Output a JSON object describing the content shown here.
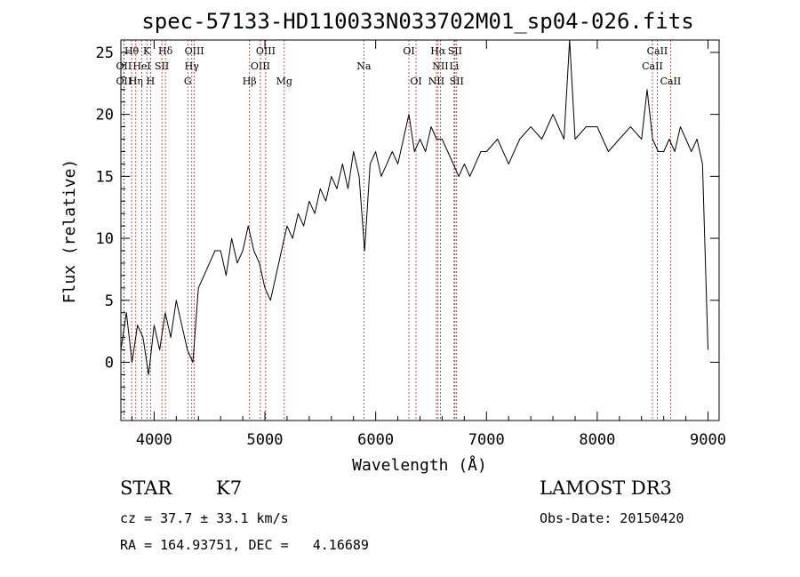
{
  "chart_data": {
    "type": "line",
    "title": "spec-57133-HD110033N033702M01_sp04-026.fits",
    "xlabel": "Wavelength (Å)",
    "ylabel": "Flux (relative)",
    "xlim": [
      3700,
      9100
    ],
    "ylim": [
      -4.7,
      26
    ],
    "x_ticks": [
      4000,
      5000,
      6000,
      7000,
      8000,
      9000
    ],
    "y_ticks": [
      0,
      5,
      10,
      15,
      20,
      25
    ],
    "series": [
      {
        "name": "flux",
        "x": [
          3700,
          3750,
          3800,
          3850,
          3900,
          3950,
          4000,
          4050,
          4100,
          4150,
          4200,
          4250,
          4300,
          4350,
          4400,
          4450,
          4500,
          4550,
          4600,
          4650,
          4700,
          4750,
          4800,
          4850,
          4900,
          4950,
          5000,
          5050,
          5100,
          5150,
          5200,
          5250,
          5300,
          5350,
          5400,
          5450,
          5500,
          5550,
          5600,
          5650,
          5700,
          5750,
          5800,
          5850,
          5900,
          5950,
          6000,
          6050,
          6100,
          6150,
          6200,
          6250,
          6300,
          6350,
          6400,
          6450,
          6500,
          6550,
          6600,
          6650,
          6700,
          6750,
          6800,
          6850,
          6900,
          6950,
          7000,
          7100,
          7200,
          7300,
          7400,
          7500,
          7600,
          7700,
          7750,
          7800,
          7900,
          8000,
          8100,
          8200,
          8300,
          8400,
          8450,
          8500,
          8550,
          8600,
          8650,
          8700,
          8750,
          8800,
          8850,
          8900,
          8950,
          9000
        ],
        "y": [
          1,
          4,
          0,
          3,
          2,
          -1,
          3,
          1,
          4,
          2,
          5,
          3,
          1,
          0,
          6,
          7,
          8,
          9,
          9,
          7,
          10,
          8,
          9,
          11,
          9,
          8,
          6,
          5,
          7,
          9,
          11,
          10,
          12,
          11,
          13,
          12,
          14,
          13,
          15,
          14,
          16,
          14,
          17,
          15,
          9,
          16,
          17,
          15,
          16,
          17,
          16,
          18,
          20,
          17,
          18,
          17,
          19,
          18,
          18,
          17,
          16,
          15,
          16,
          15,
          16,
          17,
          17,
          18,
          16,
          18,
          19,
          18,
          20,
          18,
          26,
          18,
          19,
          19,
          17,
          18,
          19,
          18,
          22,
          18,
          17,
          17,
          18,
          17,
          19,
          18,
          17,
          18,
          16,
          1
        ]
      }
    ],
    "lines": [
      {
        "label": "Hθ",
        "wl": 3797,
        "row": 1
      },
      {
        "label": "K",
        "wl": 3934,
        "row": 1
      },
      {
        "label": "Hδ",
        "wl": 4102,
        "row": 1
      },
      {
        "label": "OIII",
        "wl": 4363,
        "row": 1
      },
      {
        "label": "OIII",
        "wl": 5007,
        "row": 1
      },
      {
        "label": "OI",
        "wl": 6300,
        "row": 1
      },
      {
        "label": "Hα",
        "wl": 6563,
        "row": 1
      },
      {
        "label": "SII",
        "wl": 6716,
        "row": 1
      },
      {
        "label": "CaII",
        "wl": 8542,
        "row": 1
      },
      {
        "label": "OII",
        "wl": 3727,
        "row": 2
      },
      {
        "label": "HeI",
        "wl": 3889,
        "row": 2
      },
      {
        "label": "SII",
        "wl": 4070,
        "row": 2
      },
      {
        "label": "Hγ",
        "wl": 4340,
        "row": 2
      },
      {
        "label": "OIII",
        "wl": 4959,
        "row": 2
      },
      {
        "label": "Na",
        "wl": 5893,
        "row": 2
      },
      {
        "label": "NII",
        "wl": 6584,
        "row": 2
      },
      {
        "label": "Li",
        "wl": 6708,
        "row": 2
      },
      {
        "label": "CaII",
        "wl": 8498,
        "row": 2
      },
      {
        "label": "OII",
        "wl": 3727,
        "row": 3
      },
      {
        "label": "Hη",
        "wl": 3835,
        "row": 3
      },
      {
        "label": "H",
        "wl": 3968,
        "row": 3
      },
      {
        "label": "G",
        "wl": 4304,
        "row": 3
      },
      {
        "label": "Hβ",
        "wl": 4861,
        "row": 3
      },
      {
        "label": "Mg",
        "wl": 5175,
        "row": 3
      },
      {
        "label": "OI",
        "wl": 6364,
        "row": 3
      },
      {
        "label": "NII",
        "wl": 6548,
        "row": 3
      },
      {
        "label": "SII",
        "wl": 6731,
        "row": 3
      },
      {
        "label": "CaII",
        "wl": 8662,
        "row": 3
      }
    ]
  },
  "info": {
    "class": "STAR",
    "subclass": "K7",
    "survey": "LAMOST DR3",
    "cz": "cz = 37.7 ± 33.1 km/s",
    "obs_date": "Obs-Date: 20150420",
    "radec": "RA = 164.93751, DEC =   4.16689"
  },
  "colors": {
    "spectrum": "#000000",
    "line_marker": "#b22222",
    "axis": "#000000"
  }
}
